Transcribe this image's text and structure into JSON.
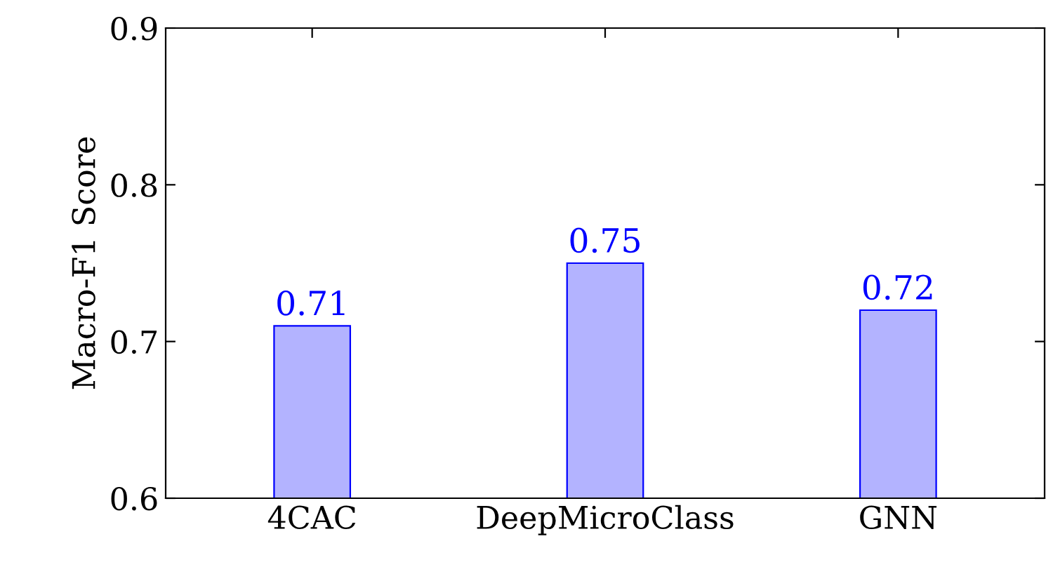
{
  "chart_data": {
    "type": "bar",
    "ylabel": "Macro-F1 Score",
    "categories": [
      "4CAC",
      "DeepMicroClass",
      "GNN"
    ],
    "values": [
      0.71,
      0.75,
      0.72
    ],
    "color": "#b3b3ff",
    "data_labels": true,
    "ylim": [
      0.6,
      0.9
    ],
    "yticks": [
      0.6,
      0.7,
      0.8,
      0.9
    ],
    "grid": false,
    "legend": false
  }
}
